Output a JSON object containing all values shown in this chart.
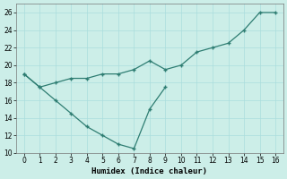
{
  "title": "",
  "xlabel": "Humidex (Indice chaleur)",
  "background_color": "#cceee8",
  "line_color": "#2e7d72",
  "xlim": [
    -0.5,
    16.5
  ],
  "ylim": [
    10,
    27
  ],
  "yticks": [
    10,
    12,
    14,
    16,
    18,
    20,
    22,
    24,
    26
  ],
  "xticks": [
    0,
    1,
    2,
    3,
    4,
    5,
    6,
    7,
    8,
    9,
    10,
    11,
    12,
    13,
    14,
    15,
    16
  ],
  "series1_x": [
    0,
    1,
    2,
    3,
    4,
    5,
    6,
    7,
    8,
    9,
    10,
    11,
    12,
    13,
    14,
    15,
    16
  ],
  "series1_y": [
    19.0,
    17.5,
    18.0,
    18.5,
    18.5,
    19.0,
    19.0,
    19.5,
    20.5,
    19.5,
    20.0,
    21.5,
    22.0,
    22.5,
    24.0,
    26.0,
    26.0
  ],
  "series2_x": [
    0,
    1,
    2,
    3,
    4,
    5,
    6,
    7,
    8,
    9
  ],
  "series2_y": [
    19.0,
    17.5,
    16.0,
    14.5,
    13.0,
    12.0,
    11.0,
    10.5,
    15.0,
    17.5
  ],
  "grid_color": "#aadddd",
  "tick_labelsize": 5.5,
  "xlabel_fontsize": 6.5
}
